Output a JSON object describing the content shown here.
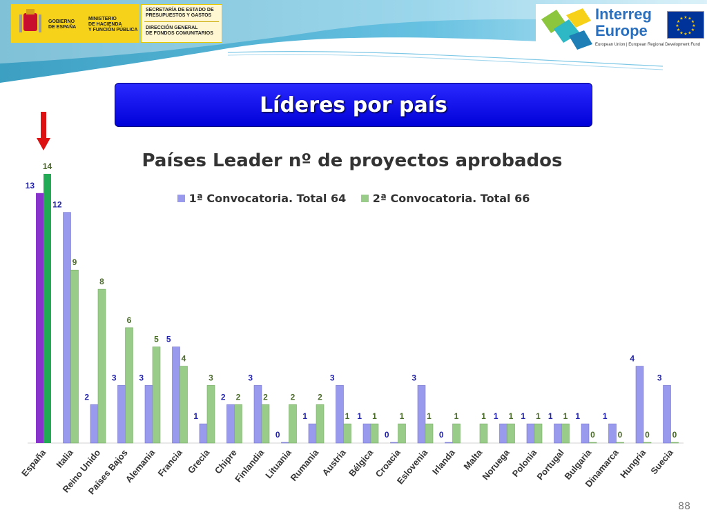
{
  "header": {
    "gov_left": "GOBIERNO\nDE ESPAÑA",
    "gov_right": "MINISTERIO\nDE HACIENDA\nY FUNCIÓN PÚBLICA",
    "secretaria": "SECRETARÍA DE ESTADO DE\nPRESUPUESTOS Y GASTOS",
    "direccion": "DIRECCIÓN GENERAL\nDE FONDOS COMUNITARIOS",
    "interreg_line1": "Interreg",
    "interreg_line2": "Europe",
    "interreg_sub": "European Union | European Regional Development Fund"
  },
  "banner": {
    "title": "Líderes por país"
  },
  "chart_data": {
    "type": "bar",
    "title": "Países Leader nº de proyectos aprobados",
    "categories": [
      "España",
      "Italia",
      "Reino Unido",
      "Países Bajos",
      "Alemania",
      "Francia",
      "Grecia",
      "Chipre",
      "Finlandia",
      "Lituania",
      "Rumania",
      "Austria",
      "Bélgica",
      "Croacia",
      "Eslovenia",
      "Irlanda",
      "Malta",
      "Noruega",
      "Polonia",
      "Portugal",
      "Bulgaria",
      "Dinamarca",
      "Hungria",
      "Suecia"
    ],
    "series": [
      {
        "name": "1ª Convocatoria. Total 64",
        "values": [
          13,
          12,
          2,
          3,
          3,
          5,
          1,
          2,
          3,
          0,
          1,
          3,
          1,
          0,
          3,
          0,
          null,
          1,
          1,
          1,
          1,
          1,
          4,
          3
        ],
        "color": "#9999ee"
      },
      {
        "name": "2ª Convocatoria. Total 66",
        "values": [
          14,
          9,
          8,
          6,
          5,
          4,
          3,
          2,
          2,
          2,
          2,
          1,
          1,
          1,
          1,
          1,
          1,
          1,
          1,
          1,
          0,
          0,
          0,
          0
        ],
        "color": "#99cc88"
      }
    ],
    "highlight": {
      "category": "España",
      "colors": [
        "#8833cc",
        "#22aa55"
      ]
    },
    "ylim": [
      0,
      14.5
    ],
    "legend_position": "top",
    "grid": false
  },
  "page_number": "88"
}
